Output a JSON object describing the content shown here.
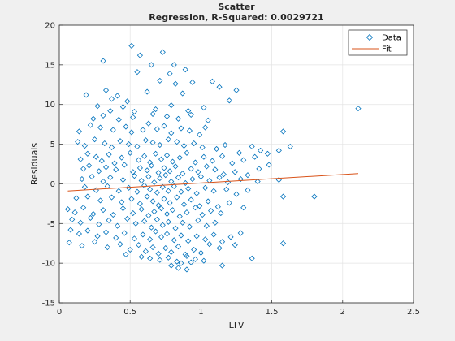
{
  "chart_data": {
    "type": "scatter",
    "title": "Scatter",
    "subtitle": "Regression, R-Squared: 0.0029721",
    "xlabel": "LTV",
    "ylabel": "Residuals",
    "xlim": [
      0,
      2.5
    ],
    "ylim": [
      -15,
      20
    ],
    "xticks": [
      "0",
      "0.5",
      "1",
      "1.5",
      "2",
      "2.5"
    ],
    "yticks": [
      "-15",
      "-10",
      "-5",
      "0",
      "5",
      "10",
      "15",
      "20"
    ],
    "grid": true,
    "legend_position": "top-right",
    "series": [
      {
        "name": "Data",
        "marker": "diamond",
        "color": "#0072BD",
        "points": [
          [
            0.51,
            17.4
          ],
          [
            0.57,
            16.2
          ],
          [
            0.73,
            16.6
          ],
          [
            0.31,
            15.5
          ],
          [
            0.65,
            15.0
          ],
          [
            0.81,
            15.0
          ],
          [
            0.89,
            14.4
          ],
          [
            0.78,
            13.9
          ],
          [
            0.55,
            14.1
          ],
          [
            0.71,
            13.0
          ],
          [
            0.82,
            12.6
          ],
          [
            0.94,
            12.8
          ],
          [
            1.08,
            12.9
          ],
          [
            1.13,
            12.2
          ],
          [
            0.19,
            11.2
          ],
          [
            0.33,
            11.8
          ],
          [
            0.41,
            11.1
          ],
          [
            0.37,
            10.7
          ],
          [
            0.48,
            10.4
          ],
          [
            0.62,
            11.6
          ],
          [
            0.87,
            11.4
          ],
          [
            1.25,
            11.8
          ],
          [
            2.11,
            9.5
          ],
          [
            0.27,
            9.8
          ],
          [
            0.36,
            9.2
          ],
          [
            0.45,
            9.7
          ],
          [
            0.53,
            9.1
          ],
          [
            0.68,
            9.4
          ],
          [
            0.79,
            9.9
          ],
          [
            0.91,
            9.2
          ],
          [
            1.02,
            9.6
          ],
          [
            1.2,
            10.5
          ],
          [
            0.24,
            8.2
          ],
          [
            0.31,
            8.6
          ],
          [
            0.42,
            8.1
          ],
          [
            0.52,
            8.4
          ],
          [
            0.66,
            8.8
          ],
          [
            0.76,
            8.5
          ],
          [
            0.84,
            8.2
          ],
          [
            0.93,
            8.7
          ],
          [
            1.05,
            8.0
          ],
          [
            0.14,
            6.6
          ],
          [
            0.22,
            7.4
          ],
          [
            0.29,
            7.1
          ],
          [
            0.38,
            6.8
          ],
          [
            0.47,
            7.2
          ],
          [
            0.51,
            6.5
          ],
          [
            0.59,
            6.8
          ],
          [
            0.63,
            7.6
          ],
          [
            0.69,
            6.9
          ],
          [
            0.74,
            7.3
          ],
          [
            0.79,
            6.4
          ],
          [
            0.86,
            7.0
          ],
          [
            0.92,
            6.7
          ],
          [
            0.99,
            6.2
          ],
          [
            1.03,
            7.1
          ],
          [
            1.58,
            6.6
          ],
          [
            0.13,
            5.3
          ],
          [
            0.18,
            4.8
          ],
          [
            0.25,
            5.6
          ],
          [
            0.32,
            5.1
          ],
          [
            0.37,
            4.6
          ],
          [
            0.43,
            5.4
          ],
          [
            0.49,
            5.0
          ],
          [
            0.55,
            4.7
          ],
          [
            0.61,
            5.5
          ],
          [
            0.66,
            5.2
          ],
          [
            0.71,
            4.9
          ],
          [
            0.77,
            5.6
          ],
          [
            0.83,
            5.3
          ],
          [
            0.88,
            4.8
          ],
          [
            0.95,
            5.1
          ],
          [
            1.01,
            4.6
          ],
          [
            1.11,
            4.4
          ],
          [
            1.17,
            4.9
          ],
          [
            1.36,
            4.7
          ],
          [
            1.42,
            4.2
          ],
          [
            1.47,
            3.8
          ],
          [
            1.55,
            4.2
          ],
          [
            1.63,
            4.7
          ],
          [
            0.15,
            3.1
          ],
          [
            0.2,
            3.8
          ],
          [
            0.26,
            3.4
          ],
          [
            0.3,
            2.9
          ],
          [
            0.35,
            3.7
          ],
          [
            0.39,
            2.6
          ],
          [
            0.44,
            3.3
          ],
          [
            0.5,
            3.9
          ],
          [
            0.56,
            3.0
          ],
          [
            0.6,
            3.5
          ],
          [
            0.64,
            2.7
          ],
          [
            0.68,
            3.8
          ],
          [
            0.72,
            3.1
          ],
          [
            0.76,
            3.6
          ],
          [
            0.8,
            2.8
          ],
          [
            0.85,
            3.3
          ],
          [
            0.9,
            3.9
          ],
          [
            0.96,
            2.7
          ],
          [
            1.02,
            3.4
          ],
          [
            1.08,
            2.9
          ],
          [
            1.15,
            3.5
          ],
          [
            1.22,
            2.6
          ],
          [
            1.3,
            3.0
          ],
          [
            1.38,
            3.4
          ],
          [
            1.27,
            3.9
          ],
          [
            0.17,
            1.9
          ],
          [
            0.21,
            2.3
          ],
          [
            0.28,
            1.6
          ],
          [
            0.33,
            2.1
          ],
          [
            0.4,
            1.8
          ],
          [
            0.46,
            2.4
          ],
          [
            0.52,
            1.5
          ],
          [
            0.57,
            2.0
          ],
          [
            0.62,
            1.7
          ],
          [
            0.65,
            2.3
          ],
          [
            0.7,
            1.4
          ],
          [
            0.74,
            2.0
          ],
          [
            0.78,
            1.6
          ],
          [
            0.82,
            2.2
          ],
          [
            0.87,
            1.3
          ],
          [
            0.93,
            1.9
          ],
          [
            0.98,
            1.5
          ],
          [
            1.04,
            2.2
          ],
          [
            1.1,
            1.8
          ],
          [
            1.16,
            1.2
          ],
          [
            1.24,
            1.5
          ],
          [
            1.33,
            1.1
          ],
          [
            1.41,
            1.9
          ],
          [
            1.48,
            2.4
          ],
          [
            0.16,
            0.6
          ],
          [
            0.23,
            0.9
          ],
          [
            0.31,
            0.3
          ],
          [
            0.36,
            0.8
          ],
          [
            0.45,
            0.5
          ],
          [
            0.53,
            1.0
          ],
          [
            0.58,
            0.4
          ],
          [
            0.63,
            0.9
          ],
          [
            0.67,
            0.2
          ],
          [
            0.71,
            0.7
          ],
          [
            0.75,
            1.1
          ],
          [
            0.79,
            0.3
          ],
          [
            0.84,
            0.8
          ],
          [
            0.89,
            0.1
          ],
          [
            0.94,
            0.6
          ],
          [
            1.0,
            0.9
          ],
          [
            1.06,
            0.4
          ],
          [
            1.13,
            0.8
          ],
          [
            1.19,
            0.2
          ],
          [
            1.28,
            0.6
          ],
          [
            1.4,
            0.3
          ],
          [
            1.55,
            0.5
          ],
          [
            0.18,
            -0.4
          ],
          [
            0.26,
            -0.8
          ],
          [
            0.34,
            -0.3
          ],
          [
            0.42,
            -0.9
          ],
          [
            0.49,
            -0.5
          ],
          [
            0.55,
            -1.0
          ],
          [
            0.6,
            -0.2
          ],
          [
            0.64,
            -0.7
          ],
          [
            0.69,
            -1.1
          ],
          [
            0.73,
            -0.4
          ],
          [
            0.77,
            -0.9
          ],
          [
            0.81,
            -0.3
          ],
          [
            0.86,
            -1.0
          ],
          [
            0.91,
            -0.6
          ],
          [
            0.97,
            -1.2
          ],
          [
            1.03,
            -0.5
          ],
          [
            1.09,
            -0.9
          ],
          [
            1.18,
            -0.7
          ],
          [
            1.25,
            -1.3
          ],
          [
            1.33,
            -0.8
          ],
          [
            1.58,
            -1.6
          ],
          [
            1.8,
            -1.6
          ],
          [
            0.12,
            -1.8
          ],
          [
            0.2,
            -1.6
          ],
          [
            0.29,
            -2.1
          ],
          [
            0.37,
            -1.7
          ],
          [
            0.44,
            -2.3
          ],
          [
            0.51,
            -1.9
          ],
          [
            0.57,
            -2.5
          ],
          [
            0.62,
            -1.6
          ],
          [
            0.66,
            -2.2
          ],
          [
            0.7,
            -2.7
          ],
          [
            0.74,
            -1.9
          ],
          [
            0.78,
            -2.4
          ],
          [
            0.83,
            -1.7
          ],
          [
            0.88,
            -2.6
          ],
          [
            0.93,
            -2.0
          ],
          [
            0.99,
            -2.8
          ],
          [
            1.05,
            -2.2
          ],
          [
            1.12,
            -2.9
          ],
          [
            1.2,
            -2.4
          ],
          [
            0.06,
            -3.2
          ],
          [
            0.11,
            -3.6
          ],
          [
            0.17,
            -3.0
          ],
          [
            0.24,
            -3.8
          ],
          [
            0.31,
            -3.3
          ],
          [
            0.38,
            -3.9
          ],
          [
            0.45,
            -3.1
          ],
          [
            0.52,
            -3.7
          ],
          [
            0.58,
            -3.2
          ],
          [
            0.63,
            -4.0
          ],
          [
            0.67,
            -3.5
          ],
          [
            0.72,
            -3.1
          ],
          [
            0.76,
            -3.8
          ],
          [
            0.8,
            -3.3
          ],
          [
            0.85,
            -4.1
          ],
          [
            0.9,
            -3.6
          ],
          [
            0.96,
            -3.0
          ],
          [
            1.01,
            -3.9
          ],
          [
            1.07,
            -3.4
          ],
          [
            1.14,
            -3.7
          ],
          [
            1.3,
            -3.0
          ],
          [
            0.09,
            -4.5
          ],
          [
            0.15,
            -4.9
          ],
          [
            0.22,
            -4.3
          ],
          [
            0.28,
            -5.1
          ],
          [
            0.35,
            -4.6
          ],
          [
            0.41,
            -5.3
          ],
          [
            0.48,
            -4.4
          ],
          [
            0.54,
            -5.0
          ],
          [
            0.6,
            -4.7
          ],
          [
            0.65,
            -5.5
          ],
          [
            0.69,
            -4.5
          ],
          [
            0.73,
            -5.2
          ],
          [
            0.77,
            -4.8
          ],
          [
            0.82,
            -5.6
          ],
          [
            0.87,
            -4.9
          ],
          [
            0.92,
            -5.4
          ],
          [
            0.98,
            -4.6
          ],
          [
            1.04,
            -5.3
          ],
          [
            1.1,
            -4.9
          ],
          [
            0.08,
            -5.8
          ],
          [
            0.14,
            -6.3
          ],
          [
            0.2,
            -5.9
          ],
          [
            0.27,
            -6.6
          ],
          [
            0.33,
            -6.1
          ],
          [
            0.4,
            -6.8
          ],
          [
            0.46,
            -6.2
          ],
          [
            0.53,
            -6.9
          ],
          [
            0.59,
            -6.4
          ],
          [
            0.64,
            -7.0
          ],
          [
            0.68,
            -6.0
          ],
          [
            0.72,
            -6.7
          ],
          [
            0.76,
            -6.3
          ],
          [
            0.81,
            -7.1
          ],
          [
            0.86,
            -6.5
          ],
          [
            0.91,
            -7.2
          ],
          [
            0.97,
            -6.6
          ],
          [
            1.03,
            -7.0
          ],
          [
            1.09,
            -6.4
          ],
          [
            1.15,
            -7.3
          ],
          [
            1.21,
            -6.7
          ],
          [
            1.28,
            -6.2
          ],
          [
            0.07,
            -7.4
          ],
          [
            0.16,
            -7.8
          ],
          [
            0.25,
            -7.3
          ],
          [
            0.34,
            -8.0
          ],
          [
            0.43,
            -7.6
          ],
          [
            0.5,
            -8.3
          ],
          [
            0.56,
            -7.7
          ],
          [
            0.61,
            -8.5
          ],
          [
            0.66,
            -8.0
          ],
          [
            0.7,
            -8.8
          ],
          [
            0.75,
            -8.1
          ],
          [
            0.79,
            -8.6
          ],
          [
            0.84,
            -7.9
          ],
          [
            0.89,
            -8.9
          ],
          [
            0.95,
            -8.3
          ],
          [
            1.0,
            -8.7
          ],
          [
            1.06,
            -7.6
          ],
          [
            1.13,
            -8.1
          ],
          [
            1.24,
            -7.7
          ],
          [
            1.58,
            -7.5
          ],
          [
            0.47,
            -8.9
          ],
          [
            0.58,
            -9.2
          ],
          [
            0.64,
            -9.4
          ],
          [
            0.71,
            -9.6
          ],
          [
            0.77,
            -9.3
          ],
          [
            0.83,
            -9.8
          ],
          [
            0.9,
            -9.1
          ],
          [
            0.96,
            -9.5
          ],
          [
            1.02,
            -9.7
          ],
          [
            1.36,
            -9.4
          ],
          [
            0.86,
            -10.0
          ],
          [
            0.93,
            -9.9
          ],
          [
            0.79,
            -10.3
          ],
          [
            0.84,
            -10.6
          ],
          [
            0.9,
            -10.8
          ],
          [
            1.15,
            -10.3
          ]
        ]
      },
      {
        "name": "Fit",
        "type": "line",
        "color": "#D95319",
        "x": [
          0.06,
          2.11
        ],
        "y": [
          -0.9,
          1.3
        ]
      }
    ]
  }
}
